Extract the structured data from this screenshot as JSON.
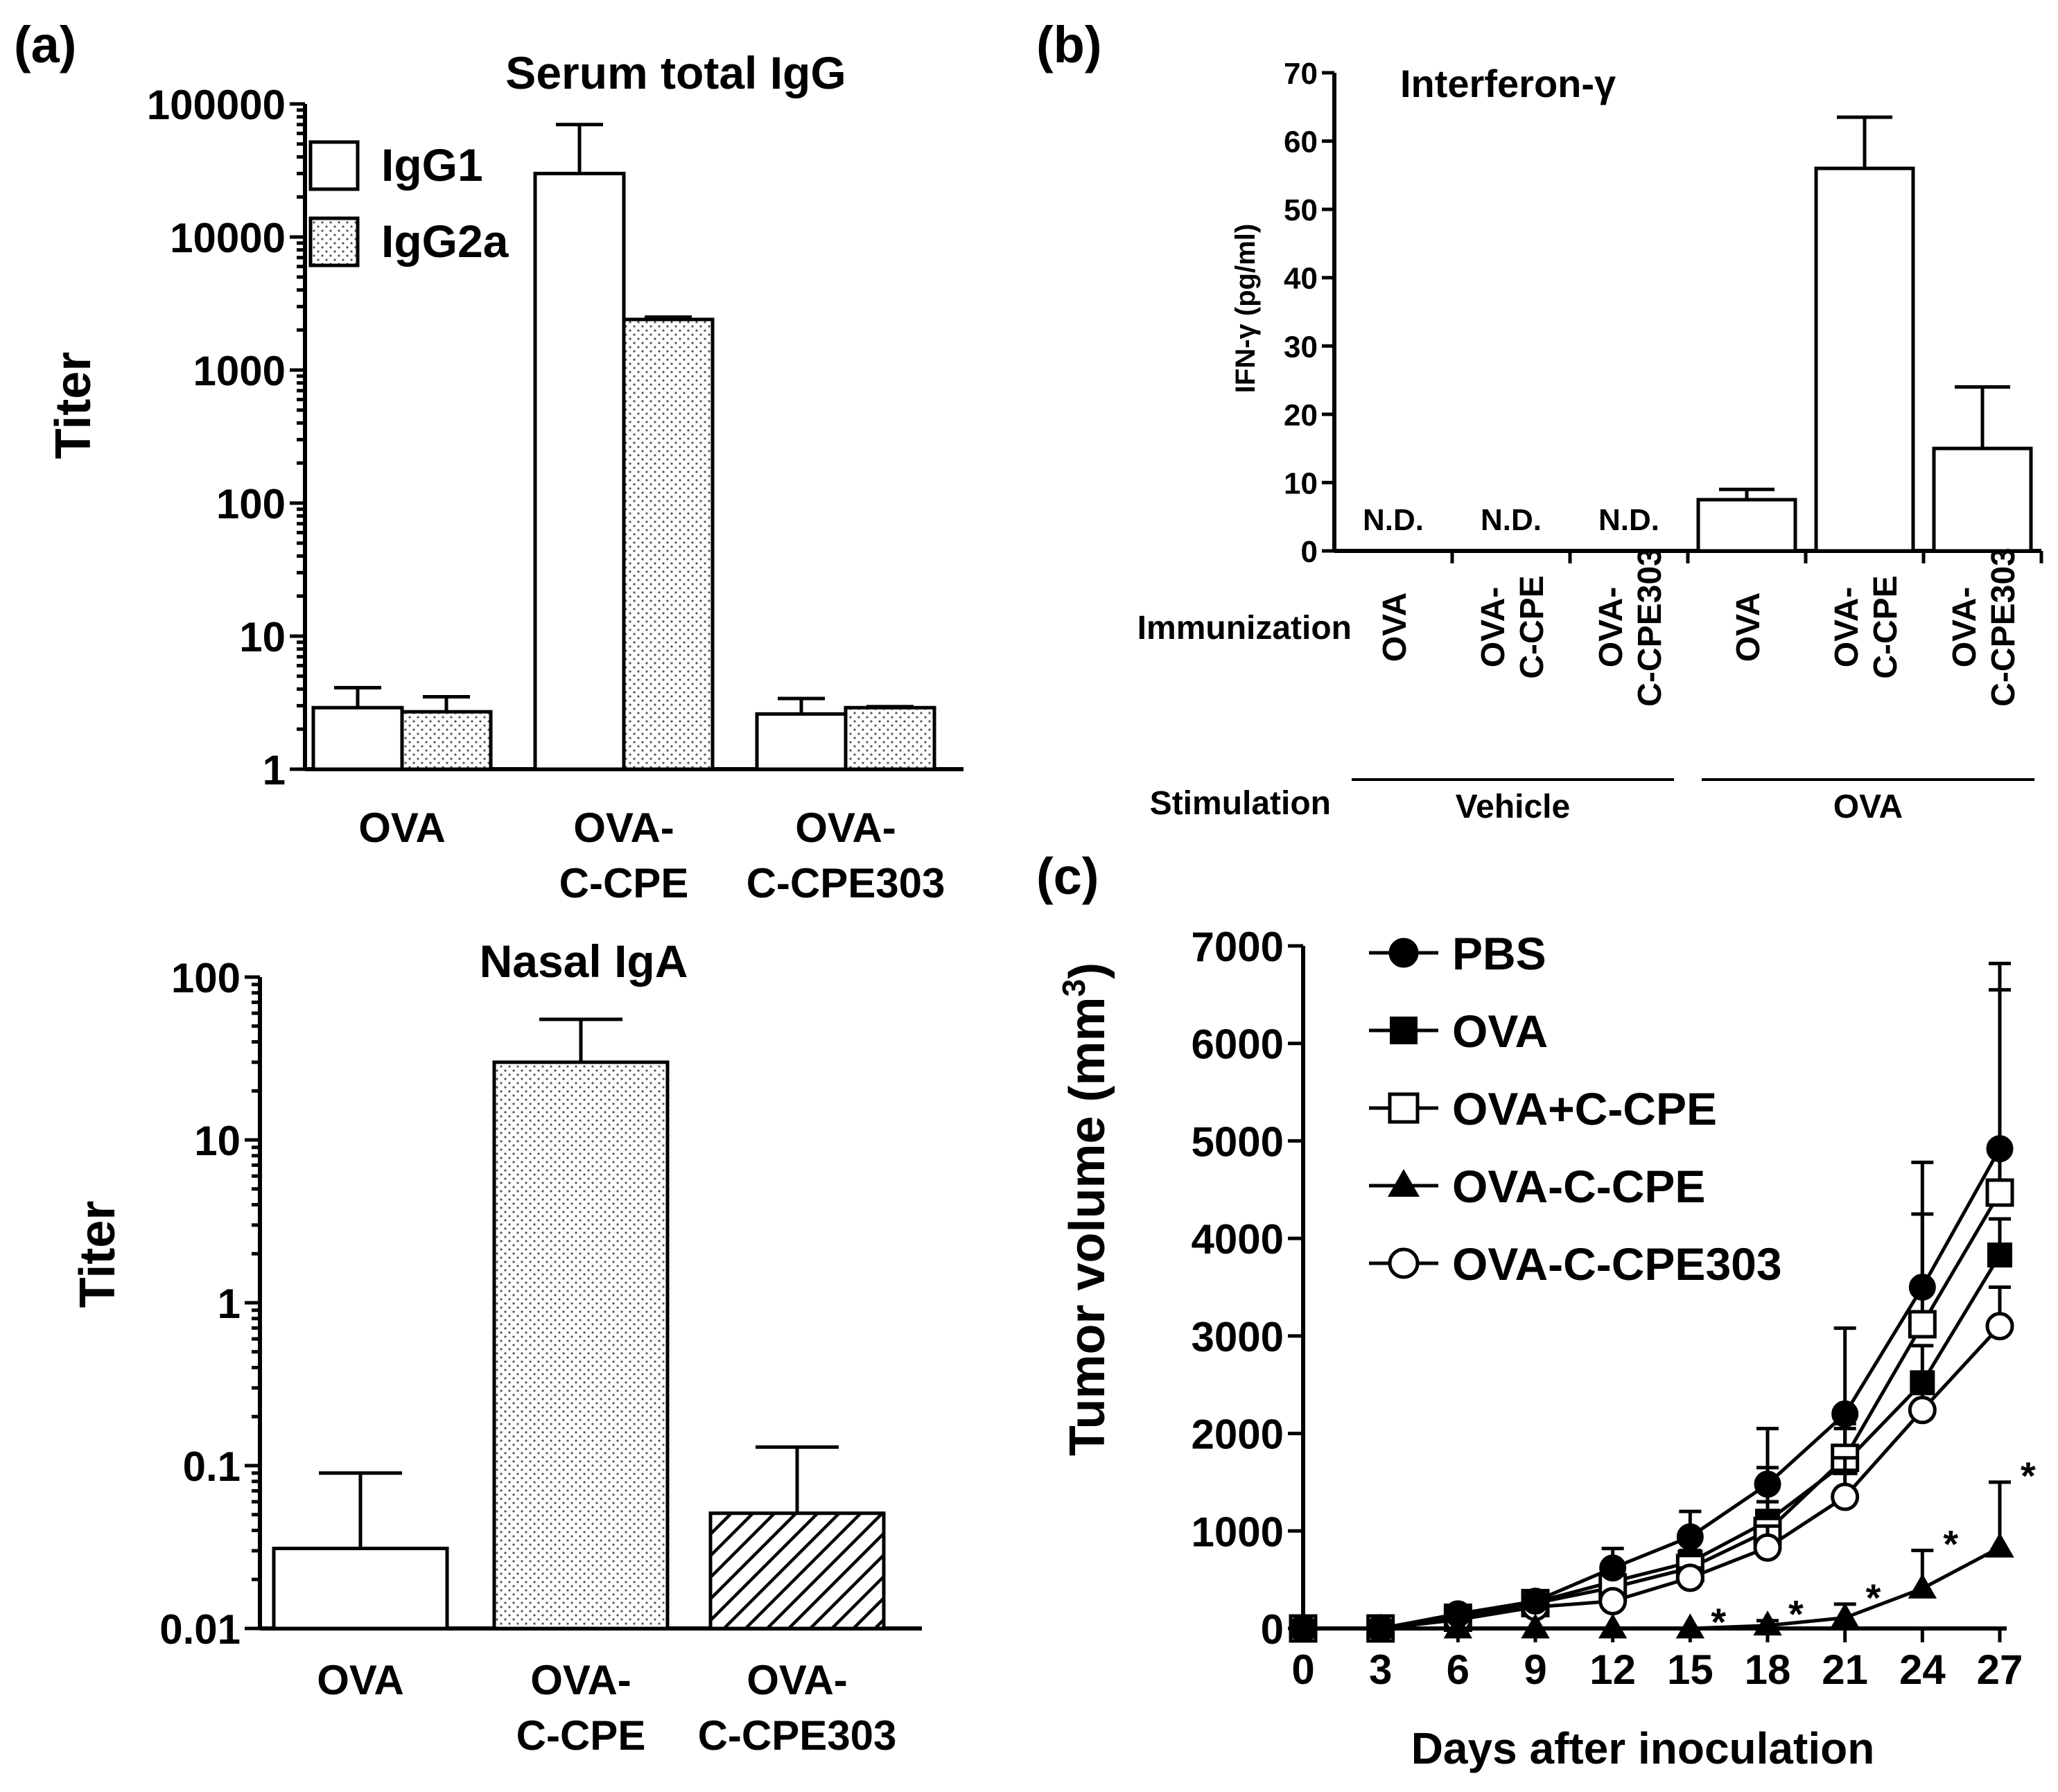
{
  "panel_labels": {
    "a": "(a)",
    "b": "(b)",
    "c": "(c)"
  },
  "chart_data": [
    {
      "id": "serum",
      "type": "bar",
      "title": "Serum total IgG",
      "ylabel": "Titer",
      "yscale": "log",
      "ylim": [
        1,
        100000
      ],
      "yticks": [
        "1",
        "10",
        "100",
        "1000",
        "10000",
        "100000"
      ],
      "categories": [
        [
          "OVA"
        ],
        [
          "OVA-",
          "C-CPE"
        ],
        [
          "OVA-",
          "C-CPE303"
        ]
      ],
      "series": [
        {
          "name": "IgG1",
          "fill": "white",
          "values": [
            2.9,
            30000,
            2.6
          ],
          "errors": [
            4.1,
            70000,
            3.4
          ]
        },
        {
          "name": "IgG2a",
          "fill": "dots",
          "values": [
            2.7,
            2400,
            2.9
          ],
          "errors": [
            3.5,
            2500,
            2.95
          ]
        }
      ],
      "legend": "top-left"
    },
    {
      "id": "nasal",
      "type": "bar",
      "title": "Nasal IgA",
      "ylabel": "Titer",
      "yscale": "log",
      "ylim": [
        0.01,
        100
      ],
      "yticks": [
        "0.01",
        "0.1",
        "1",
        "10",
        "100"
      ],
      "categories": [
        [
          "OVA"
        ],
        [
          "OVA-",
          "C-CPE"
        ],
        [
          "OVA-",
          "C-CPE303"
        ]
      ],
      "series": [
        {
          "name": "Nasal IgA",
          "values": [
            0.031,
            30,
            0.051
          ],
          "errors": [
            0.09,
            55,
            0.13
          ],
          "fills": [
            "white",
            "dots",
            "hatch"
          ]
        }
      ]
    },
    {
      "id": "ifn",
      "type": "bar",
      "title": "Interferon-γ",
      "ylabel": "IFN-γ (pg/ml)",
      "ylim": [
        0,
        70
      ],
      "yticks": [
        "0",
        "10",
        "20",
        "30",
        "40",
        "50",
        "60",
        "70"
      ],
      "categories": [
        [
          "OVA"
        ],
        [
          "OVA-",
          "C-CPE"
        ],
        [
          "OVA-",
          "C-CPE303"
        ],
        [
          "OVA"
        ],
        [
          "OVA-",
          "C-CPE"
        ],
        [
          "OVA-",
          "C-CPE303"
        ]
      ],
      "values": [
        null,
        null,
        null,
        7.5,
        56,
        15
      ],
      "errors": [
        null,
        null,
        null,
        9,
        63.5,
        24
      ],
      "nd_label": "N.D.",
      "row_labels": {
        "immunization": "Immunization",
        "stimulation": "Stimulation"
      },
      "stimulation_groups": [
        "Vehicle",
        "OVA"
      ]
    },
    {
      "id": "tumor",
      "type": "line",
      "xlabel": "Days after inoculation",
      "ylabel": "Tumor volume (mm",
      "ylabel_sup": "3",
      "ylabel_end": ")",
      "x": [
        0,
        3,
        6,
        9,
        12,
        15,
        18,
        21,
        24,
        27
      ],
      "xticks": [
        "0",
        "3",
        "6",
        "9",
        "12",
        "15",
        "18",
        "21",
        "24",
        "27"
      ],
      "ylim": [
        0,
        7000
      ],
      "yticks": [
        "0",
        "1000",
        "2000",
        "3000",
        "4000",
        "5000",
        "6000",
        "7000"
      ],
      "legend": "top-left",
      "significance_marker": "*",
      "series": [
        {
          "name": "PBS",
          "marker": "filled-circle",
          "values": [
            0,
            0,
            150,
            280,
            620,
            940,
            1480,
            2200,
            3500,
            4920
          ],
          "errors": [
            0,
            0,
            190,
            330,
            820,
            1200,
            2050,
            3080,
            4780,
            6820
          ]
        },
        {
          "name": "OVA",
          "marker": "filled-square",
          "values": [
            0,
            0,
            120,
            270,
            480,
            680,
            1100,
            1700,
            2520,
            3830
          ],
          "errors": [
            0,
            0,
            150,
            300,
            560,
            800,
            1300,
            2050,
            2900,
            4200
          ]
        },
        {
          "name": "OVA+C-CPE",
          "marker": "open-square",
          "values": [
            0,
            0,
            110,
            260,
            420,
            620,
            1000,
            1750,
            3120,
            4470
          ],
          "errors": [
            0,
            0,
            140,
            290,
            520,
            760,
            1650,
            2100,
            4250,
            6550
          ]
        },
        {
          "name": "OVA-C-CPE",
          "marker": "filled-triangle",
          "values": [
            0,
            0,
            0,
            0,
            0,
            0,
            30,
            110,
            410,
            830
          ],
          "errors": [
            0,
            0,
            0,
            0,
            0,
            0,
            80,
            250,
            800,
            1500
          ]
        },
        {
          "name": "OVA-C-CPE303",
          "marker": "open-circle",
          "values": [
            0,
            0,
            90,
            220,
            280,
            520,
            830,
            1350,
            2240,
            3100
          ],
          "errors": [
            0,
            0,
            110,
            250,
            350,
            620,
            1050,
            1750,
            2600,
            3500
          ]
        }
      ],
      "significant_days": [
        15,
        18,
        21,
        24,
        27
      ]
    }
  ]
}
